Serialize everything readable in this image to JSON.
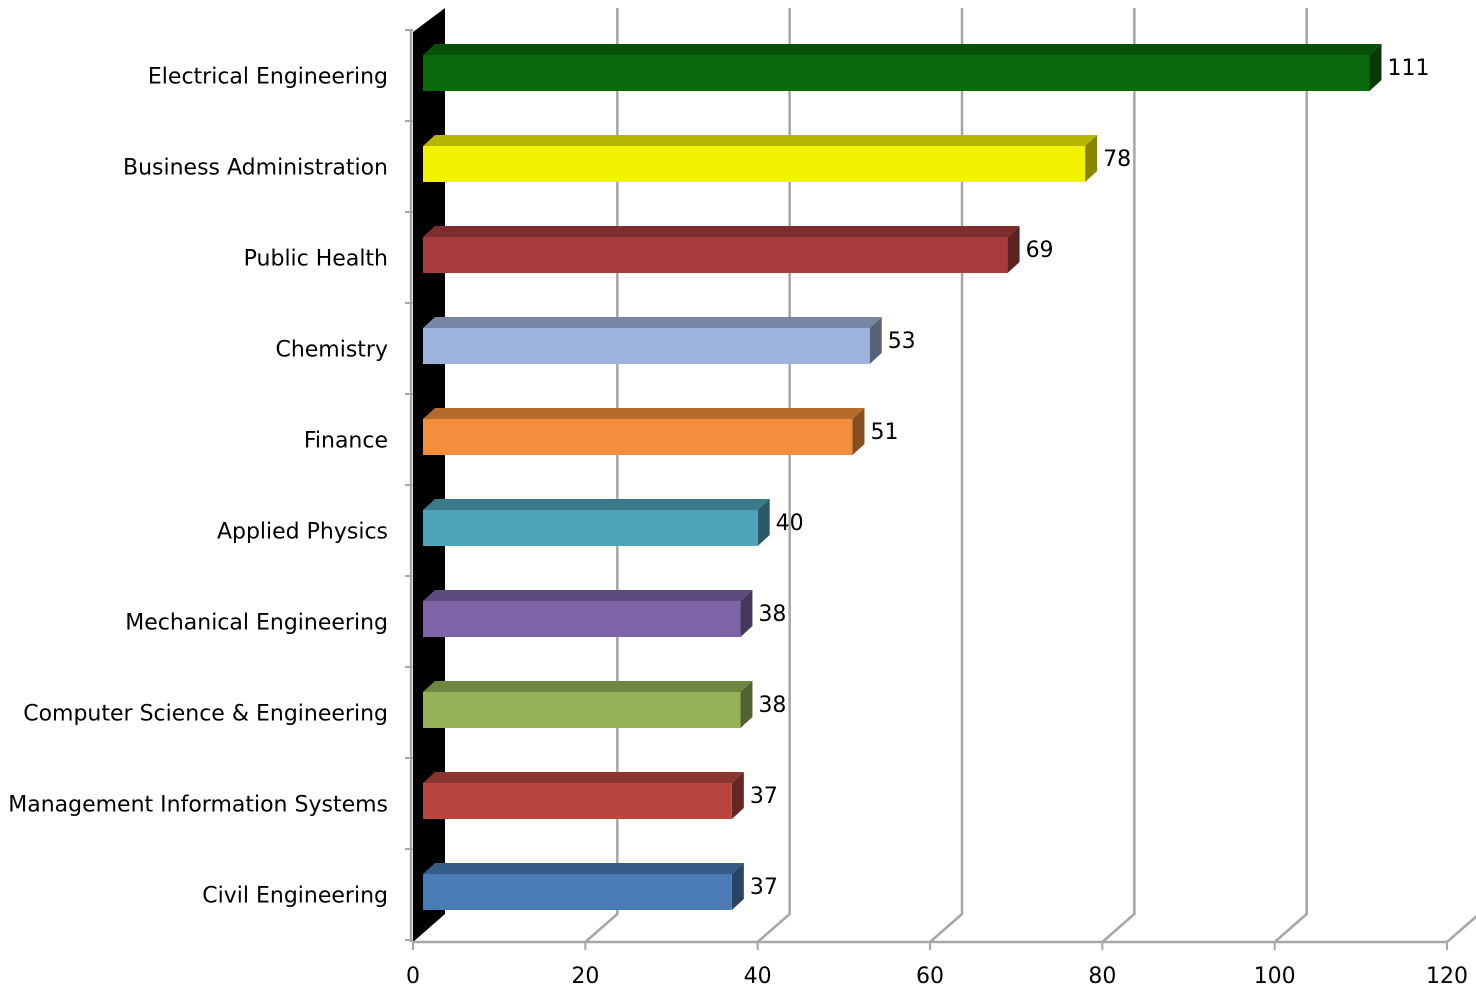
{
  "chart_data": {
    "type": "bar",
    "orientation": "horizontal",
    "style": "3d",
    "title": "",
    "xlabel": "",
    "ylabel": "",
    "xlim": [
      0,
      120
    ],
    "x_ticks": [
      "0",
      "20",
      "40",
      "60",
      "80",
      "100",
      "120"
    ],
    "grid": true,
    "legend": "none",
    "categories": [
      "Electrical Engineering",
      "Business Administration",
      "Public Health",
      "Chemistry",
      "Finance",
      "Applied Physics",
      "Mechanical Engineering",
      "Computer Science & Engineering",
      "Management Information Systems",
      "Civil Engineering"
    ],
    "values": [
      111,
      78,
      69,
      53,
      51,
      40,
      38,
      38,
      37,
      37
    ],
    "colors": [
      "#0b6a0b",
      "#f2f200",
      "#a83c3c",
      "#9db3db",
      "#f28e3c",
      "#4da3b8",
      "#7d64a6",
      "#93b356",
      "#b8463f",
      "#4a7bb5"
    ]
  }
}
